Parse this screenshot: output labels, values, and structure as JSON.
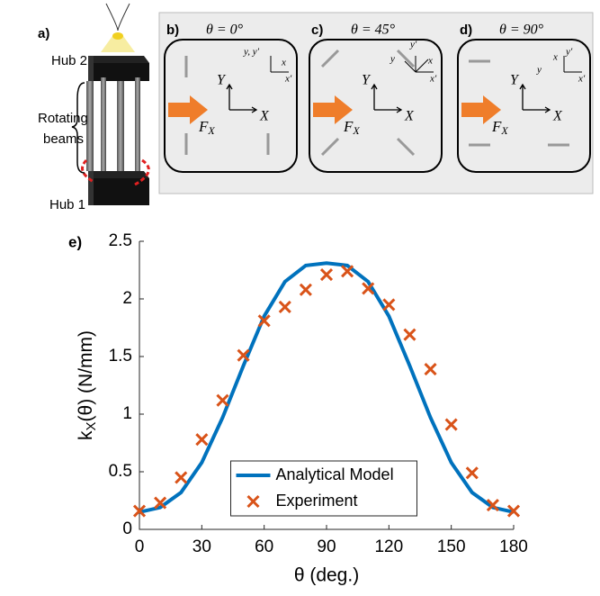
{
  "diagram": {
    "a": {
      "label": "a)",
      "hub_top": "Hub 2",
      "beams_1": "Rotating",
      "beams_2": "beams",
      "hub_bottom": "Hub 1"
    },
    "panels": [
      {
        "label": "b)",
        "title": "θ = 0°",
        "axis_y": "Y",
        "axis_x": "X",
        "force": "F",
        "force_sub": "X",
        "small": [
          "y, y′",
          "x",
          "x′"
        ]
      },
      {
        "label": "c)",
        "title": "θ = 45°",
        "axis_y": "Y",
        "axis_x": "X",
        "force": "F",
        "force_sub": "X",
        "small": [
          "y′",
          "y",
          "x",
          "x′"
        ]
      },
      {
        "label": "d)",
        "title": "θ = 90°",
        "axis_y": "Y",
        "axis_x": "X",
        "force": "F",
        "force_sub": "X",
        "small": [
          "x",
          "y′",
          "y",
          "x′"
        ]
      }
    ]
  },
  "chart_data": {
    "type": "line",
    "panel_label": "e)",
    "xlabel": "θ (deg.)",
    "ylabel": {
      "main": "k",
      "sub": "X",
      "rest": "(θ) (N/mm)"
    },
    "x": [
      0,
      10,
      20,
      30,
      40,
      50,
      60,
      70,
      80,
      90,
      100,
      110,
      120,
      130,
      140,
      150,
      160,
      170,
      180
    ],
    "series": [
      {
        "name": "Analytical Model",
        "color": "#0072bd",
        "marker": "line",
        "values": [
          0.15,
          0.19,
          0.32,
          0.58,
          0.97,
          1.42,
          1.85,
          2.15,
          2.29,
          2.31,
          2.29,
          2.15,
          1.85,
          1.42,
          0.97,
          0.58,
          0.32,
          0.19,
          0.15
        ]
      },
      {
        "name": "Experiment",
        "color": "#d95319",
        "marker": "x",
        "values": [
          0.16,
          0.23,
          0.45,
          0.78,
          1.12,
          1.51,
          1.81,
          1.93,
          2.08,
          2.21,
          2.24,
          2.09,
          1.95,
          1.69,
          1.39,
          0.91,
          0.49,
          0.21,
          0.16
        ]
      }
    ],
    "xlim": [
      0,
      180
    ],
    "xticks": [
      0,
      30,
      60,
      90,
      120,
      150,
      180
    ],
    "ylim": [
      0,
      2.5
    ],
    "yticks": [
      0,
      0.5,
      1,
      1.5,
      2,
      2.5
    ],
    "legend": "lower center"
  }
}
